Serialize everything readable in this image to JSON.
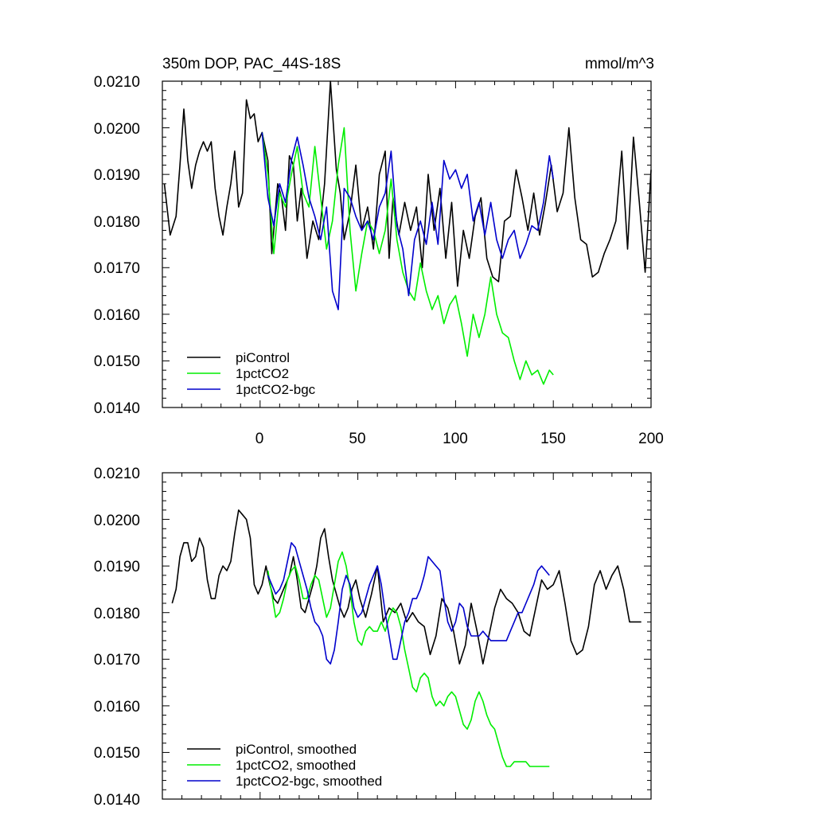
{
  "chart_data": [
    {
      "type": "line",
      "title": "350m DOP, PAC_44S-18S",
      "units": "mmol/m^3",
      "xlabel": "",
      "ylabel": "",
      "xlim": [
        -50,
        200
      ],
      "ylim": [
        0.014,
        0.021
      ],
      "xticks": [
        0,
        50,
        100,
        150,
        200
      ],
      "yticks": [
        "0.0140",
        "0.0150",
        "0.0160",
        "0.0170",
        "0.0180",
        "0.0190",
        "0.0200",
        "0.0210"
      ],
      "legend_position": "bottom-left",
      "series": [
        {
          "name": "piControl",
          "color": "#000000",
          "x": [
            -49,
            -46,
            -43,
            -41,
            -39,
            -37,
            -35,
            -33,
            -31,
            -29,
            -27,
            -25,
            -23,
            -21,
            -19,
            -17,
            -15,
            -13,
            -11,
            -9,
            -7,
            -5,
            -3,
            -1,
            1,
            4,
            6,
            9,
            11,
            13,
            15,
            17,
            19,
            21,
            24,
            27,
            30,
            33,
            36,
            39,
            41,
            43,
            46,
            49,
            52,
            55,
            58,
            61,
            64,
            66,
            68,
            71,
            74,
            77,
            80,
            83,
            86,
            89,
            92,
            95,
            98,
            101,
            104,
            107,
            110,
            113,
            116,
            119,
            122,
            125,
            128,
            131,
            134,
            137,
            140,
            143,
            146,
            149,
            152,
            155,
            158,
            161,
            164,
            167,
            170,
            173,
            176,
            179,
            182,
            185,
            188,
            191,
            194,
            197,
            200
          ],
          "y": [
            0.0188,
            0.0177,
            0.0181,
            0.0192,
            0.0204,
            0.0193,
            0.0187,
            0.0192,
            0.0195,
            0.0197,
            0.0195,
            0.0197,
            0.0187,
            0.0181,
            0.0177,
            0.0183,
            0.0188,
            0.0195,
            0.0183,
            0.0186,
            0.0206,
            0.0202,
            0.0203,
            0.0197,
            0.0199,
            0.0193,
            0.0173,
            0.0188,
            0.0185,
            0.0178,
            0.0194,
            0.0192,
            0.018,
            0.0187,
            0.0172,
            0.018,
            0.0176,
            0.0188,
            0.021,
            0.0191,
            0.0186,
            0.0176,
            0.0182,
            0.0192,
            0.0178,
            0.0183,
            0.0174,
            0.019,
            0.0195,
            0.0172,
            0.0185,
            0.0177,
            0.0184,
            0.0178,
            0.0183,
            0.017,
            0.019,
            0.0178,
            0.0187,
            0.0172,
            0.0184,
            0.0166,
            0.0178,
            0.0172,
            0.0181,
            0.0185,
            0.0172,
            0.0168,
            0.0167,
            0.018,
            0.0181,
            0.0191,
            0.0185,
            0.0178,
            0.0186,
            0.0177,
            0.0184,
            0.0192,
            0.0182,
            0.0186,
            0.02,
            0.0185,
            0.0176,
            0.0175,
            0.0168,
            0.0169,
            0.0173,
            0.0176,
            0.018,
            0.0195,
            0.0174,
            0.0198,
            0.0184,
            0.0169,
            0.0191
          ]
        },
        {
          "name": "1pctCO2",
          "color": "#00ee00",
          "x": [
            1,
            4,
            7,
            10,
            13,
            16,
            19,
            22,
            25,
            28,
            31,
            34,
            37,
            40,
            43,
            46,
            49,
            52,
            55,
            58,
            61,
            64,
            67,
            70,
            73,
            76,
            79,
            82,
            85,
            88,
            91,
            94,
            97,
            100,
            103,
            106,
            109,
            112,
            115,
            118,
            121,
            124,
            127,
            130,
            133,
            136,
            139,
            142,
            145,
            148,
            150
          ],
          "y": [
            0.0199,
            0.019,
            0.0173,
            0.0186,
            0.0183,
            0.019,
            0.0196,
            0.0186,
            0.0183,
            0.0196,
            0.0185,
            0.0174,
            0.018,
            0.0192,
            0.02,
            0.0178,
            0.0165,
            0.0173,
            0.018,
            0.0178,
            0.0173,
            0.0178,
            0.0189,
            0.0176,
            0.0169,
            0.0165,
            0.0163,
            0.0171,
            0.0165,
            0.0161,
            0.0164,
            0.0158,
            0.0162,
            0.0164,
            0.0158,
            0.0151,
            0.016,
            0.0155,
            0.016,
            0.0168,
            0.016,
            0.0156,
            0.0155,
            0.015,
            0.0146,
            0.015,
            0.0147,
            0.0148,
            0.0145,
            0.0148,
            0.0147
          ]
        },
        {
          "name": "1pctCO2-bgc",
          "color": "#0000cc",
          "x": [
            1,
            4,
            7,
            10,
            13,
            16,
            19,
            22,
            25,
            28,
            31,
            34,
            37,
            40,
            43,
            46,
            49,
            52,
            55,
            58,
            61,
            64,
            67,
            70,
            73,
            76,
            79,
            82,
            85,
            88,
            91,
            94,
            97,
            100,
            103,
            106,
            109,
            112,
            115,
            118,
            121,
            124,
            127,
            130,
            133,
            136,
            139,
            142,
            145,
            148,
            150
          ],
          "y": [
            0.0199,
            0.0185,
            0.0179,
            0.0188,
            0.0184,
            0.0193,
            0.0198,
            0.0192,
            0.0185,
            0.0181,
            0.0176,
            0.0183,
            0.0165,
            0.0161,
            0.0187,
            0.0185,
            0.0181,
            0.0178,
            0.018,
            0.0176,
            0.0183,
            0.0186,
            0.0195,
            0.0179,
            0.0174,
            0.0164,
            0.0176,
            0.018,
            0.0175,
            0.0184,
            0.0175,
            0.0193,
            0.0189,
            0.0191,
            0.0187,
            0.019,
            0.018,
            0.0184,
            0.0177,
            0.0184,
            0.0176,
            0.0172,
            0.0176,
            0.0178,
            0.0172,
            0.0175,
            0.0179,
            0.0178,
            0.0184,
            0.0194,
            0.0189
          ]
        }
      ]
    },
    {
      "type": "line",
      "title": "",
      "xlabel": "",
      "ylabel": "",
      "xlim": [
        -50,
        200
      ],
      "ylim": [
        0.014,
        0.021
      ],
      "yticks": [
        "0.0140",
        "0.0150",
        "0.0160",
        "0.0170",
        "0.0180",
        "0.0190",
        "0.0200",
        "0.0210"
      ],
      "legend_position": "bottom-left",
      "series": [
        {
          "name": "piControl, smoothed",
          "color": "#000000",
          "x": [
            -45,
            -43,
            -41,
            -39,
            -37,
            -35,
            -33,
            -31,
            -29,
            -27,
            -25,
            -23,
            -21,
            -19,
            -17,
            -15,
            -13,
            -11,
            -9,
            -7,
            -5,
            -3,
            -1,
            1,
            3,
            5,
            7,
            9,
            11,
            13,
            15,
            17,
            19,
            21,
            23,
            25,
            27,
            29,
            31,
            33,
            35,
            37,
            39,
            41,
            43,
            45,
            47,
            49,
            51,
            54,
            57,
            60,
            63,
            66,
            69,
            72,
            75,
            78,
            81,
            84,
            87,
            90,
            93,
            96,
            99,
            102,
            105,
            108,
            111,
            114,
            117,
            120,
            123,
            126,
            129,
            132,
            135,
            138,
            141,
            144,
            147,
            150,
            153,
            156,
            159,
            162,
            165,
            168,
            171,
            174,
            177,
            180,
            183,
            186,
            189,
            192,
            195
          ],
          "y": [
            0.0182,
            0.0185,
            0.0192,
            0.0195,
            0.0195,
            0.0191,
            0.0192,
            0.0196,
            0.0194,
            0.0187,
            0.0183,
            0.0183,
            0.0188,
            0.019,
            0.0189,
            0.0191,
            0.0197,
            0.0202,
            0.0201,
            0.02,
            0.0196,
            0.0186,
            0.0184,
            0.0186,
            0.019,
            0.0186,
            0.0183,
            0.0182,
            0.0184,
            0.0186,
            0.0188,
            0.0192,
            0.0187,
            0.0181,
            0.018,
            0.0183,
            0.0186,
            0.019,
            0.0196,
            0.0198,
            0.0192,
            0.0187,
            0.0184,
            0.0181,
            0.0179,
            0.0181,
            0.0185,
            0.0187,
            0.0183,
            0.0179,
            0.0184,
            0.019,
            0.0178,
            0.0181,
            0.018,
            0.0182,
            0.0178,
            0.018,
            0.0178,
            0.0177,
            0.0171,
            0.0175,
            0.0183,
            0.0181,
            0.0176,
            0.0169,
            0.0173,
            0.0182,
            0.0176,
            0.0169,
            0.0175,
            0.0181,
            0.0185,
            0.0183,
            0.0182,
            0.018,
            0.0176,
            0.0175,
            0.0181,
            0.0187,
            0.0185,
            0.0186,
            0.0189,
            0.0182,
            0.0174,
            0.0171,
            0.0172,
            0.0177,
            0.0186,
            0.0189,
            0.0185,
            0.0188,
            0.019,
            0.0185,
            0.0178,
            0.0178,
            0.0178
          ]
        },
        {
          "name": "1pctCO2, smoothed",
          "color": "#00ee00",
          "x": [
            4,
            6,
            8,
            10,
            12,
            14,
            16,
            18,
            20,
            22,
            24,
            26,
            28,
            30,
            32,
            34,
            36,
            38,
            40,
            42,
            44,
            46,
            48,
            50,
            52,
            54,
            56,
            58,
            60,
            62,
            64,
            66,
            68,
            70,
            72,
            74,
            76,
            78,
            80,
            82,
            84,
            86,
            88,
            90,
            92,
            94,
            96,
            98,
            100,
            102,
            104,
            106,
            108,
            110,
            112,
            114,
            116,
            118,
            120,
            122,
            124,
            126,
            128,
            130,
            132,
            134,
            136,
            138,
            140,
            142,
            144,
            146,
            148
          ],
          "y": [
            0.0189,
            0.0184,
            0.0179,
            0.018,
            0.0183,
            0.0187,
            0.0189,
            0.019,
            0.0187,
            0.0183,
            0.0183,
            0.0186,
            0.0188,
            0.0187,
            0.0183,
            0.0179,
            0.0181,
            0.0186,
            0.0191,
            0.0193,
            0.019,
            0.0185,
            0.0178,
            0.0174,
            0.0173,
            0.0176,
            0.0177,
            0.0176,
            0.0176,
            0.0178,
            0.0176,
            0.0179,
            0.0181,
            0.018,
            0.0177,
            0.0172,
            0.0168,
            0.0164,
            0.0163,
            0.0166,
            0.0167,
            0.0166,
            0.0162,
            0.016,
            0.0161,
            0.016,
            0.0162,
            0.0163,
            0.0162,
            0.0159,
            0.0156,
            0.0155,
            0.0157,
            0.0161,
            0.0163,
            0.0161,
            0.0158,
            0.0156,
            0.0155,
            0.0152,
            0.0149,
            0.0147,
            0.0147,
            0.0148,
            0.0148,
            0.0148,
            0.0148,
            0.0147,
            0.0147,
            0.0147,
            0.0147,
            0.0147,
            0.0147
          ]
        },
        {
          "name": "1pctCO2-bgc, smoothed",
          "color": "#0000cc",
          "x": [
            4,
            6,
            8,
            10,
            12,
            14,
            16,
            18,
            20,
            22,
            24,
            26,
            28,
            30,
            32,
            34,
            36,
            38,
            40,
            42,
            44,
            46,
            48,
            50,
            52,
            54,
            56,
            58,
            60,
            62,
            64,
            66,
            68,
            70,
            72,
            74,
            76,
            78,
            80,
            82,
            84,
            86,
            88,
            90,
            92,
            94,
            96,
            98,
            100,
            102,
            104,
            106,
            108,
            110,
            112,
            114,
            116,
            118,
            120,
            122,
            124,
            126,
            128,
            130,
            132,
            134,
            136,
            138,
            140,
            142,
            144,
            146,
            148
          ],
          "y": [
            0.0188,
            0.0186,
            0.0184,
            0.0185,
            0.0187,
            0.0191,
            0.0195,
            0.0194,
            0.0191,
            0.0188,
            0.0185,
            0.0181,
            0.0178,
            0.0177,
            0.0175,
            0.017,
            0.0169,
            0.0172,
            0.0178,
            0.0185,
            0.0188,
            0.0186,
            0.0181,
            0.0179,
            0.018,
            0.0183,
            0.0186,
            0.0188,
            0.019,
            0.0186,
            0.018,
            0.0175,
            0.017,
            0.017,
            0.0174,
            0.0178,
            0.018,
            0.0183,
            0.0183,
            0.0185,
            0.0188,
            0.0192,
            0.0191,
            0.019,
            0.0189,
            0.0183,
            0.0178,
            0.0176,
            0.0178,
            0.0182,
            0.0181,
            0.0177,
            0.0175,
            0.0175,
            0.0175,
            0.0176,
            0.0175,
            0.0174,
            0.0174,
            0.0174,
            0.0174,
            0.0174,
            0.0176,
            0.0178,
            0.018,
            0.018,
            0.0182,
            0.0184,
            0.0186,
            0.0189,
            0.019,
            0.0189,
            0.0188
          ]
        }
      ]
    }
  ]
}
